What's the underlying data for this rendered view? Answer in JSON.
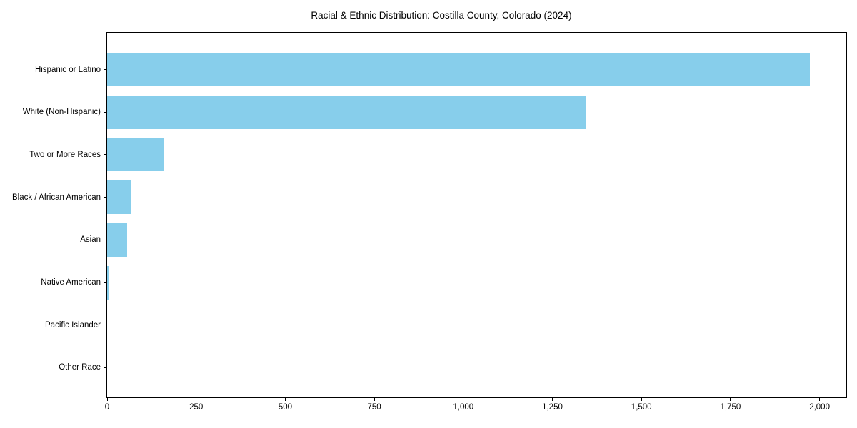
{
  "chart_data": {
    "type": "bar",
    "orientation": "horizontal",
    "title": "Racial & Ethnic Distribution: Costilla County, Colorado (2024)",
    "xlabel": "",
    "ylabel": "",
    "categories": [
      "Hispanic or Latino",
      "White (Non-Hispanic)",
      "Two or More Races",
      "Black / African American",
      "Asian",
      "Native American",
      "Pacific Islander",
      "Other Race"
    ],
    "values": [
      1972,
      1345,
      161,
      66,
      56,
      6,
      0,
      0
    ],
    "xlim": [
      0,
      2075
    ],
    "x_ticks": [
      0,
      250,
      500,
      750,
      1000,
      1250,
      1500,
      1750,
      2000
    ],
    "x_tick_labels": [
      "0",
      "250",
      "500",
      "750",
      "1,000",
      "1,250",
      "1,500",
      "1,750",
      "2,000"
    ],
    "grid": false,
    "legend": false,
    "bar_color": "#87CEEB",
    "axis_color": "#000000",
    "background_color": "#ffffff"
  }
}
